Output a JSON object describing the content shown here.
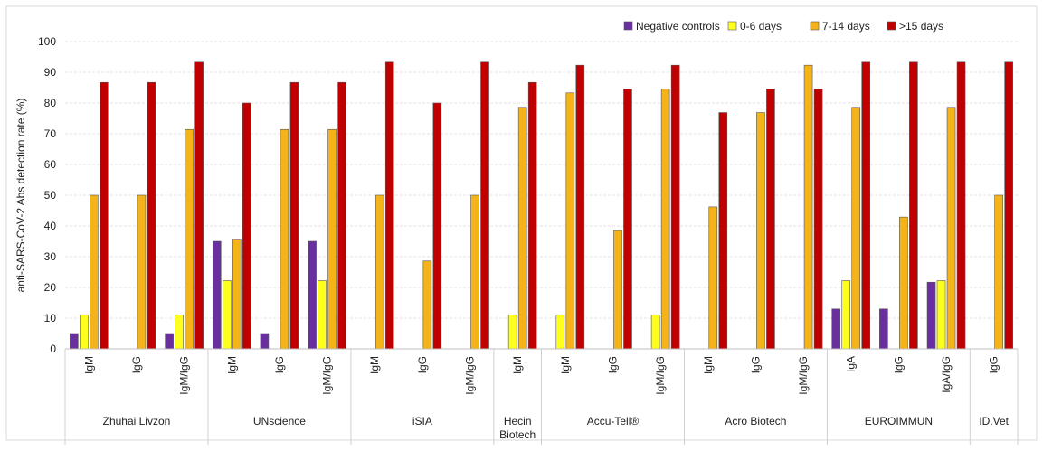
{
  "chart_data": {
    "type": "bar",
    "title": "",
    "xlabel": "",
    "ylabel": "anti-SARS-CoV-2 Abs detection rate  (%)",
    "ylim": [
      0,
      100
    ],
    "yticks": [
      "0",
      "10",
      "20",
      "30",
      "40",
      "50",
      "60",
      "70",
      "80",
      "90",
      "100"
    ],
    "grid": true,
    "legend_position": "top-right",
    "groups": [
      {
        "name": "Zhuhai Livzon",
        "categories": [
          "IgM",
          "IgG",
          "IgM/IgG"
        ]
      },
      {
        "name": "UNscience",
        "categories": [
          "IgM",
          "IgG",
          "IgM/IgG"
        ]
      },
      {
        "name": "iSIA",
        "categories": [
          "IgM",
          "IgG",
          "IgM/IgG"
        ]
      },
      {
        "name": "Hecin Biotech",
        "categories": [
          "IgM"
        ]
      },
      {
        "name": "Accu-Tell®",
        "categories": [
          "IgM",
          "IgG",
          "IgM/IgG"
        ]
      },
      {
        "name": "Acro Biotech",
        "categories": [
          "IgM",
          "IgG",
          "IgM/IgG"
        ]
      },
      {
        "name": "EUROIMMUN",
        "categories": [
          "IgA",
          "IgG",
          "IgA/IgG"
        ]
      },
      {
        "name": "ID.Vet",
        "categories": [
          "IgG"
        ]
      }
    ],
    "series": [
      {
        "name": "Negative controls",
        "color": "#6a2f9e",
        "values": [
          5,
          0,
          5,
          35,
          5,
          35,
          0,
          0,
          0,
          0,
          0,
          0,
          0,
          0,
          0,
          0,
          13,
          13,
          21.7,
          0
        ]
      },
      {
        "name": "0-6 days",
        "color": "#ffff1f",
        "values": [
          11.1,
          0,
          11.1,
          22.2,
          0,
          22.2,
          0,
          0,
          0,
          11.1,
          11.1,
          0,
          11.1,
          0,
          0,
          0,
          22.2,
          0,
          22.2,
          0
        ]
      },
      {
        "name": "7-14 days",
        "color": "#f5b31a",
        "values": [
          50,
          50,
          71.4,
          35.7,
          71.4,
          71.4,
          50,
          28.6,
          50,
          78.6,
          83.3,
          38.5,
          84.6,
          46.2,
          76.9,
          92.3,
          78.6,
          42.9,
          78.6,
          50
        ]
      },
      {
        "name": ">15 days",
        "color": "#c00000",
        "values": [
          86.7,
          86.7,
          93.3,
          80,
          86.7,
          86.7,
          93.3,
          80,
          93.3,
          86.7,
          92.3,
          84.6,
          92.3,
          76.9,
          84.6,
          84.6,
          93.3,
          93.3,
          93.3,
          93.3
        ]
      }
    ]
  }
}
